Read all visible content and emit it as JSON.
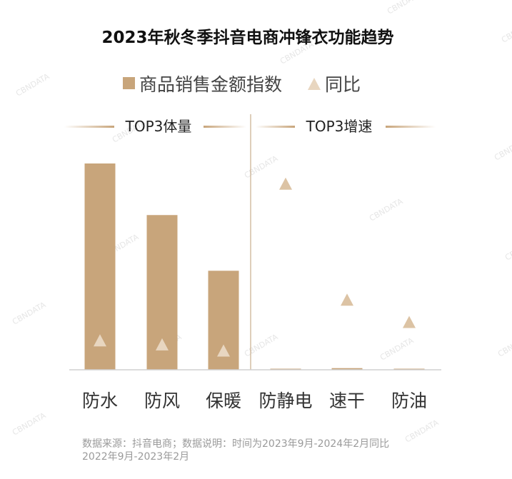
{
  "colors": {
    "bar": "#c8a57b",
    "triangle": "#e8d6c0",
    "triangle_right": "#dcc3a4",
    "axis": "#d0d0d0",
    "divider": "#c9ad8c",
    "line_gradient": "#c8a57b"
  },
  "chart_data": {
    "type": "bar",
    "title": "2023年秋冬季抖音电商冲锋衣功能趋势",
    "legend": [
      {
        "label": "商品销售金额指数",
        "marker": "bar"
      },
      {
        "label": "同比",
        "marker": "triangle"
      }
    ],
    "groups": [
      {
        "label": "TOP3体量",
        "categories": [
          "防水",
          "防风",
          "保暖"
        ]
      },
      {
        "label": "TOP3增速",
        "categories": [
          "防静电",
          "速干",
          "防油"
        ]
      }
    ],
    "categories": [
      "防水",
      "防风",
      "保暖",
      "防静电",
      "速干",
      "防油"
    ],
    "series": [
      {
        "name": "商品销售金额指数",
        "type": "bar",
        "values": [
          100,
          75,
          48,
          0.5,
          0.8,
          0.5
        ]
      },
      {
        "name": "同比",
        "type": "scatter",
        "values": [
          8,
          6,
          3,
          85,
          28,
          17
        ]
      }
    ],
    "ylim": [
      0,
      100
    ],
    "legend_position": "top",
    "grid": false
  },
  "source": {
    "line1": "数据来源：抖音电商；数据说明：时间为2023年9月-2024年2月同比",
    "line2": "2022年9月-2023年2月"
  },
  "watermark": "CBNDATA"
}
